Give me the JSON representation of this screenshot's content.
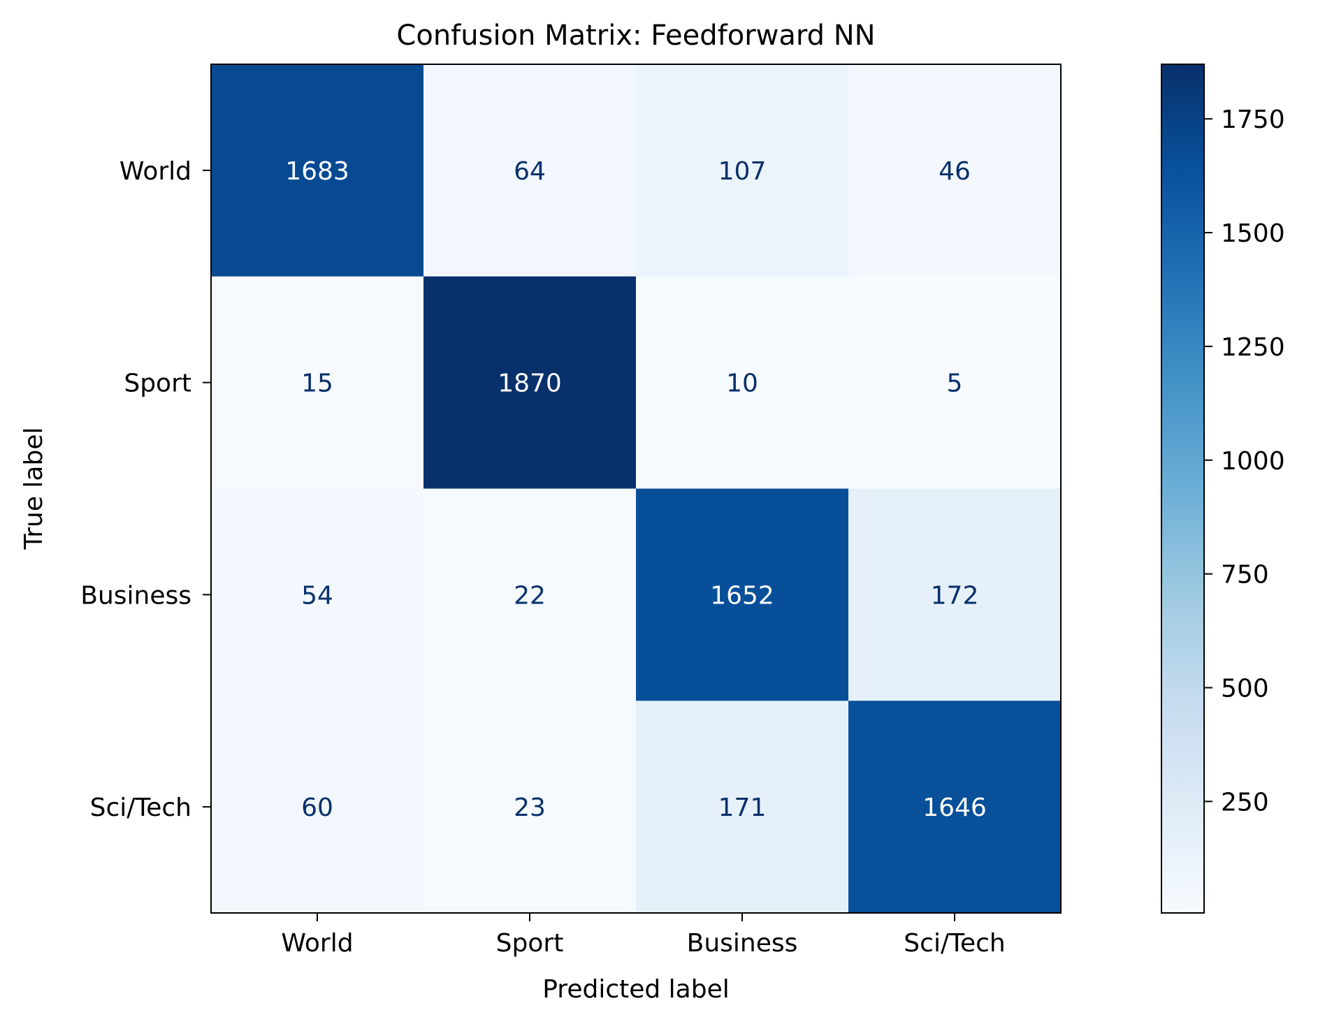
{
  "chart_data": {
    "type": "heatmap",
    "title": "Confusion Matrix: Feedforward NN",
    "xlabel": "Predicted label",
    "ylabel": "True label",
    "x_categories": [
      "World",
      "Sport",
      "Business",
      "Sci/Tech"
    ],
    "y_categories": [
      "World",
      "Sport",
      "Business",
      "Sci/Tech"
    ],
    "matrix": [
      [
        1683,
        64,
        107,
        46
      ],
      [
        15,
        1870,
        10,
        5
      ],
      [
        54,
        22,
        1652,
        172
      ],
      [
        60,
        23,
        171,
        1646
      ]
    ],
    "colormap": "Blues",
    "colorbar": {
      "range": [
        5,
        1870
      ],
      "ticks": [
        250,
        500,
        750,
        1000,
        1250,
        1500,
        1750
      ]
    },
    "colors": {
      "cell_text_dark": "#08306b",
      "cell_text_light": "#ffffff",
      "axis": "#000000"
    }
  }
}
